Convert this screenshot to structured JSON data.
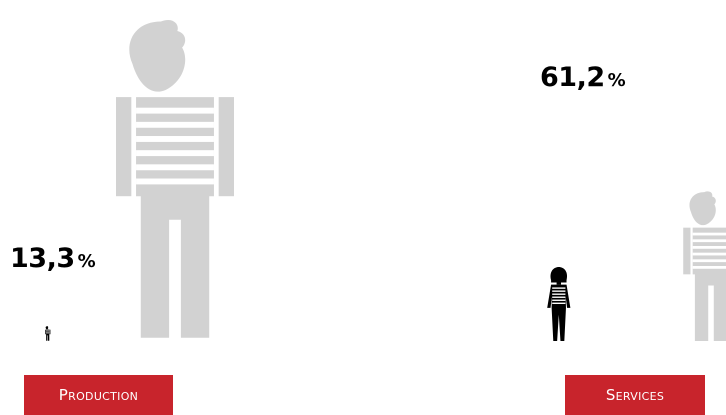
{
  "chart_data": {
    "type": "pictogram",
    "categories": [
      "Production",
      "Services"
    ],
    "values": [
      13.3,
      61.2
    ],
    "unit": "%",
    "value_labels": [
      "13,3",
      "61,2"
    ],
    "colors": {
      "value_figure": "#000000",
      "reference_figure": "#d2d2d2",
      "category_badge": "#c8242c",
      "category_text": "#ffffff"
    }
  }
}
